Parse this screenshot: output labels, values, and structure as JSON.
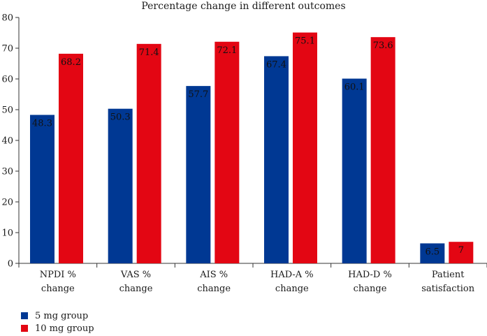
{
  "chart_data": {
    "type": "bar",
    "title": "Percentage change in different outcomes",
    "categories": [
      [
        "NPDI %",
        "change"
      ],
      [
        "VAS %",
        "change"
      ],
      [
        "AIS %",
        "change"
      ],
      [
        "HAD-A %",
        "change"
      ],
      [
        "HAD-D %",
        "change"
      ],
      [
        "Patient",
        "satisfaction"
      ]
    ],
    "series": [
      {
        "name": "5 mg group",
        "color": "#003893",
        "values": [
          48.3,
          50.3,
          57.7,
          67.4,
          60.1,
          6.5
        ],
        "labels": [
          "48.3",
          "50.3",
          "57.7",
          "67.4",
          "60.1",
          "6.5"
        ]
      },
      {
        "name": "10 mg group",
        "color": "#e30613",
        "values": [
          68.2,
          71.4,
          72.1,
          75.1,
          73.6,
          7
        ],
        "labels": [
          "68.2",
          "71.4",
          "72.1",
          "75.1",
          "73.6",
          "7"
        ]
      }
    ],
    "yticks": [
      "0",
      "10",
      "20",
      "30",
      "40",
      "50",
      "60",
      "70",
      "80"
    ],
    "ylim": [
      0,
      80
    ],
    "xlabel": "",
    "ylabel": "",
    "legend_position": "bottom-left"
  }
}
